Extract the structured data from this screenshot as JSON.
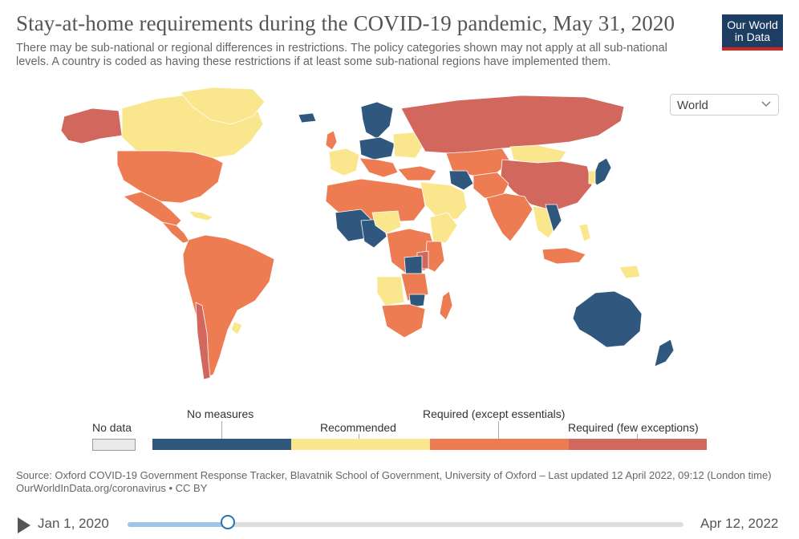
{
  "header": {
    "title": "Stay-at-home requirements during the COVID-19 pandemic, May 31, 2020",
    "subtitle": "There may be sub-national or regional differences in restrictions. The policy categories shown may not apply at all sub-national levels. A country is coded as having these restrictions if at least some sub-national regions have implemented them."
  },
  "logo": {
    "line1": "Our World",
    "line2": "in Data",
    "bg_color": "#1d3d63",
    "accent_color": "#ce261e"
  },
  "region_select": {
    "value": "World",
    "icon": "chevron-down-icon"
  },
  "legend": {
    "no_data": {
      "label": "No data",
      "color": "#e9e9e9"
    },
    "bins": [
      {
        "label": "No measures",
        "color": "#30587e"
      },
      {
        "label": "Recommended",
        "color": "#fae68c"
      },
      {
        "label": "Required (except essentials)",
        "color": "#ee7c53"
      },
      {
        "label": "Required (few exceptions)",
        "color": "#d2675e"
      }
    ]
  },
  "map_colors": {
    "few_exceptions": "#d2675e",
    "except_essentials": "#ee7c53",
    "recommended": "#fae68c",
    "no_measures": "#30587e",
    "no_data": "#e9e9e9",
    "border": "#ffffff"
  },
  "footer": {
    "source": "Source: Oxford COVID-19 Government Response Tracker, Blavatnik School of Government, University of Oxford – Last updated 12 April 2022, 09:12 (London time)",
    "link": "OurWorldInData.org/coronavirus • CC BY"
  },
  "timeline": {
    "start_label": "Jan 1, 2020",
    "end_label": "Apr 12, 2022",
    "progress": 0.18
  }
}
